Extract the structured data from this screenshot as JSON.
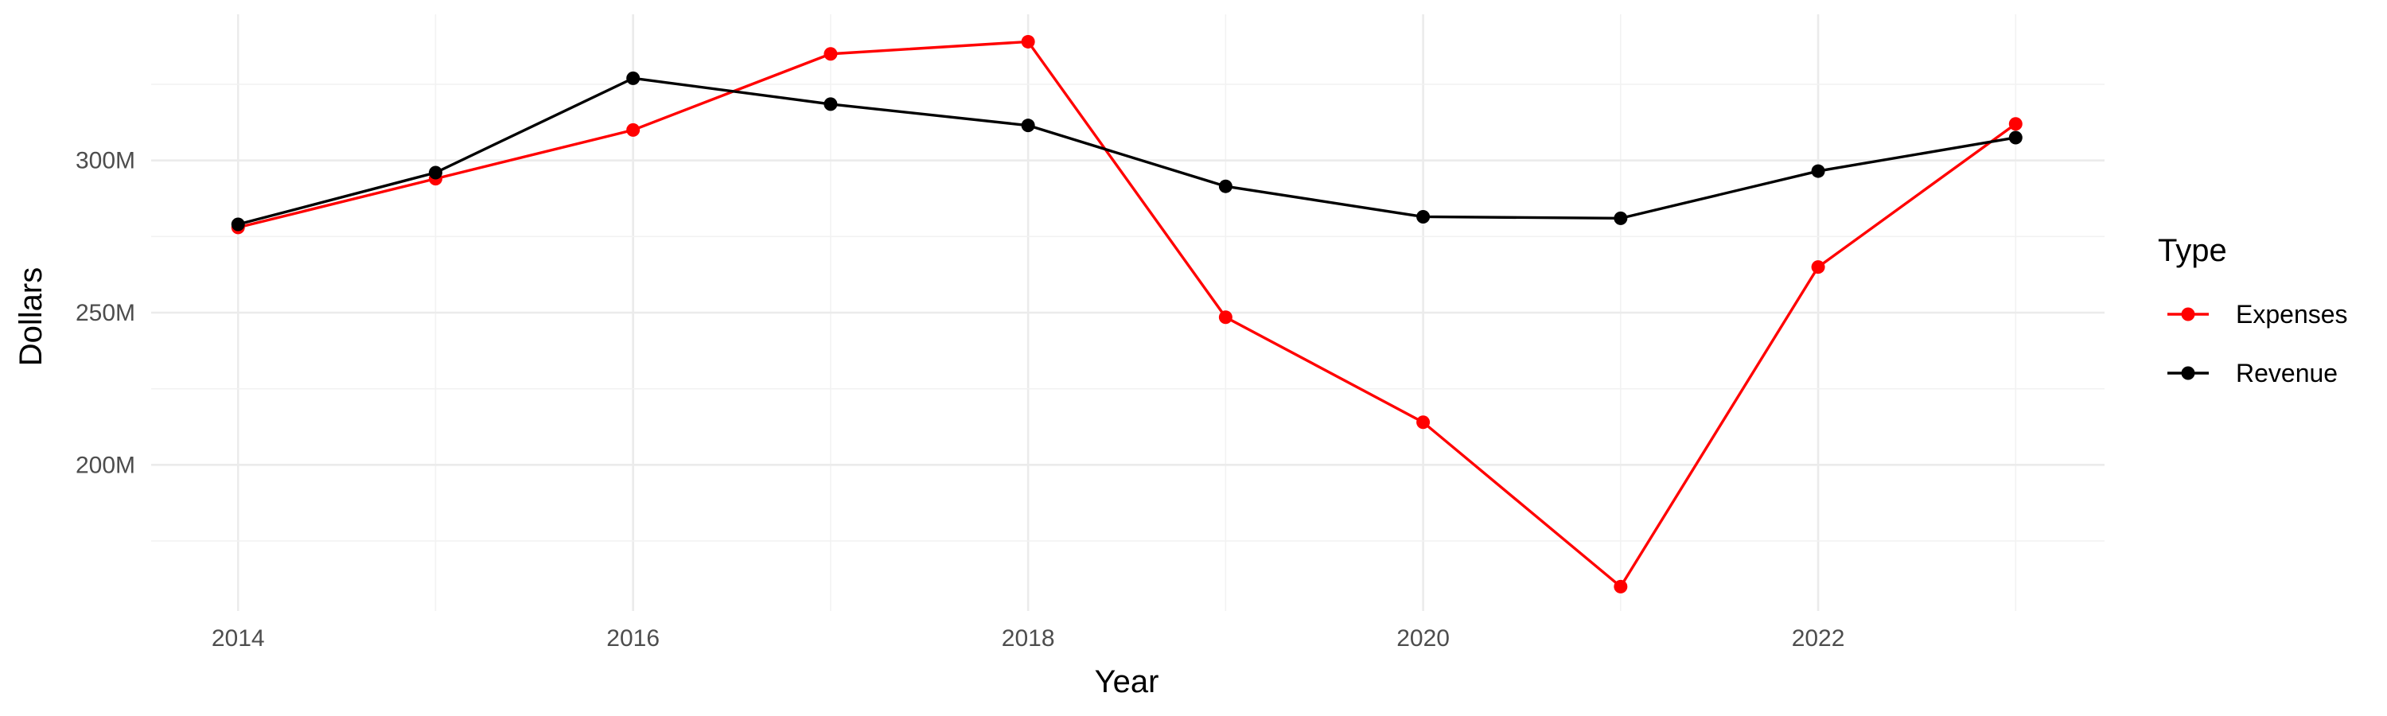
{
  "chart_data": {
    "type": "line",
    "title": "",
    "xlabel": "Year",
    "ylabel": "Dollars",
    "x": [
      2014,
      2015,
      2016,
      2017,
      2018,
      2019,
      2020,
      2021,
      2022,
      2023
    ],
    "x_ticks": [
      2014,
      2016,
      2018,
      2020,
      2022
    ],
    "x_tick_labels": [
      "2014",
      "2016",
      "2018",
      "2020",
      "2022"
    ],
    "xlim": [
      2013.56,
      2023.45
    ],
    "y_ticks": [
      200000000,
      250000000,
      300000000
    ],
    "y_tick_labels": [
      "200M",
      "250M",
      "300M"
    ],
    "ylim": [
      152000000,
      348000000
    ],
    "grid": true,
    "legend": {
      "title": "Type",
      "placement": "right"
    },
    "series": [
      {
        "name": "Expenses",
        "color": "#ff0000",
        "values": [
          278000000,
          294000000,
          310000000,
          335000000,
          339000000,
          248500000,
          214000000,
          160000000,
          265000000,
          312000000
        ]
      },
      {
        "name": "Revenue",
        "color": "#000000",
        "values": [
          279000000,
          296000000,
          327000000,
          318500000,
          311500000,
          291500000,
          281500000,
          281000000,
          296500000,
          307500000
        ]
      }
    ]
  }
}
